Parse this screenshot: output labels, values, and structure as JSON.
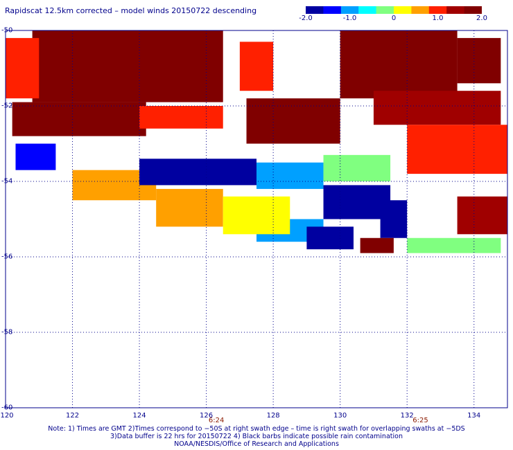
{
  "chart_data": {
    "type": "heatmap",
    "title": "Rapidscat 12.5km corrected – model winds 20150722 descending",
    "xlim": [
      120,
      135
    ],
    "ylim": [
      -60,
      -50
    ],
    "x_ticks": [
      120,
      122,
      124,
      126,
      128,
      130,
      132,
      134
    ],
    "x_tick_labels": [
      "120",
      "122",
      "124",
      "126",
      "128",
      "130",
      "132",
      "134"
    ],
    "y_ticks": [
      -50,
      -52,
      -54,
      -56,
      -58,
      -60
    ],
    "y_tick_labels": [
      "-50",
      "-52",
      "-54",
      "-56",
      "-58",
      "-60"
    ],
    "grid": true,
    "colorbar": {
      "range": [
        -2.0,
        2.0
      ],
      "ticks": [
        -2.0,
        -1.0,
        0,
        1.0,
        2.0
      ],
      "tick_labels": [
        "-2.0",
        "-1.0",
        "0",
        "1.0",
        "2.0"
      ],
      "colors": [
        "#0000a0",
        "#0000ff",
        "#00a0ff",
        "#00ffff",
        "#80ff80",
        "#ffff00",
        "#ffa000",
        "#ff2000",
        "#a00000",
        "#800000"
      ]
    },
    "time_labels": [
      {
        "lon": 126.3,
        "text": "6:24"
      },
      {
        "lon": 132.4,
        "text": "6:25"
      }
    ],
    "regions": [
      {
        "lon": [
          120.8,
          126.5
        ],
        "lat": [
          -51.9,
          -50.0
        ],
        "value": 2.0
      },
      {
        "lon": [
          120.2,
          124.2
        ],
        "lat": [
          -52.8,
          -51.9
        ],
        "value": 2.0
      },
      {
        "lon": [
          127.0,
          128.0
        ],
        "lat": [
          -51.6,
          -50.3
        ],
        "value": 1.0
      },
      {
        "lon": [
          130.0,
          133.5
        ],
        "lat": [
          -51.8,
          -50.0
        ],
        "value": 2.0
      },
      {
        "lon": [
          133.5,
          134.8
        ],
        "lat": [
          -51.4,
          -50.2
        ],
        "value": 2.0
      },
      {
        "lon": [
          127.2,
          130.0
        ],
        "lat": [
          -53.0,
          -51.8
        ],
        "value": 1.6
      },
      {
        "lon": [
          131.0,
          134.8
        ],
        "lat": [
          -52.5,
          -51.6
        ],
        "value": 1.2
      },
      {
        "lon": [
          132.0,
          135.0
        ],
        "lat": [
          -53.8,
          -52.5
        ],
        "value": 1.0
      },
      {
        "lon": [
          124.0,
          126.5
        ],
        "lat": [
          -52.6,
          -52.0
        ],
        "value": 1.0
      },
      {
        "lon": [
          120.0,
          121.0
        ],
        "lat": [
          -51.8,
          -50.2
        ],
        "value": 0.8
      },
      {
        "lon": [
          122.0,
          124.5
        ],
        "lat": [
          -54.5,
          -53.7
        ],
        "value": 0.4
      },
      {
        "lon": [
          124.0,
          127.5
        ],
        "lat": [
          -54.1,
          -53.4
        ],
        "value": -1.9
      },
      {
        "lon": [
          127.5,
          129.5
        ],
        "lat": [
          -54.2,
          -53.5
        ],
        "value": -1.2
      },
      {
        "lon": [
          129.5,
          131.5
        ],
        "lat": [
          -55.0,
          -54.1
        ],
        "value": -2.0
      },
      {
        "lon": [
          131.2,
          132.0
        ],
        "lat": [
          -55.5,
          -54.5
        ],
        "value": -1.8
      },
      {
        "lon": [
          127.5,
          129.5
        ],
        "lat": [
          -55.6,
          -55.0
        ],
        "value": -1.2
      },
      {
        "lon": [
          129.0,
          130.4
        ],
        "lat": [
          -55.8,
          -55.2
        ],
        "value": -2.0
      },
      {
        "lon": [
          129.5,
          131.5
        ],
        "lat": [
          -54.0,
          -53.3
        ],
        "value": -0.2
      },
      {
        "lon": [
          124.5,
          126.5
        ],
        "lat": [
          -55.2,
          -54.2
        ],
        "value": 0.6
      },
      {
        "lon": [
          126.5,
          128.5
        ],
        "lat": [
          -55.4,
          -54.4
        ],
        "value": 0.3
      },
      {
        "lon": [
          120.3,
          121.5
        ],
        "lat": [
          -53.7,
          -53.0
        ],
        "value": -1.5
      },
      {
        "lon": [
          130.6,
          131.6
        ],
        "lat": [
          -55.9,
          -55.5
        ],
        "value": 1.8
      },
      {
        "lon": [
          132.0,
          134.8
        ],
        "lat": [
          -55.9,
          -55.5
        ],
        "value": -0.4
      },
      {
        "lon": [
          133.5,
          135.0
        ],
        "lat": [
          -55.4,
          -54.4
        ],
        "value": 1.5
      }
    ]
  },
  "notes": {
    "line1": "Note: 1) Times are GMT 2)Times correspond to −50S at right swath edge – time is right swath for overlapping swaths at −5DS",
    "line2": "3)Data buffer is 22 hrs for 20150722 4) Black barbs indicate possible rain contamination",
    "line3": "NOAA/NESDIS/Office of Research and Applications"
  }
}
